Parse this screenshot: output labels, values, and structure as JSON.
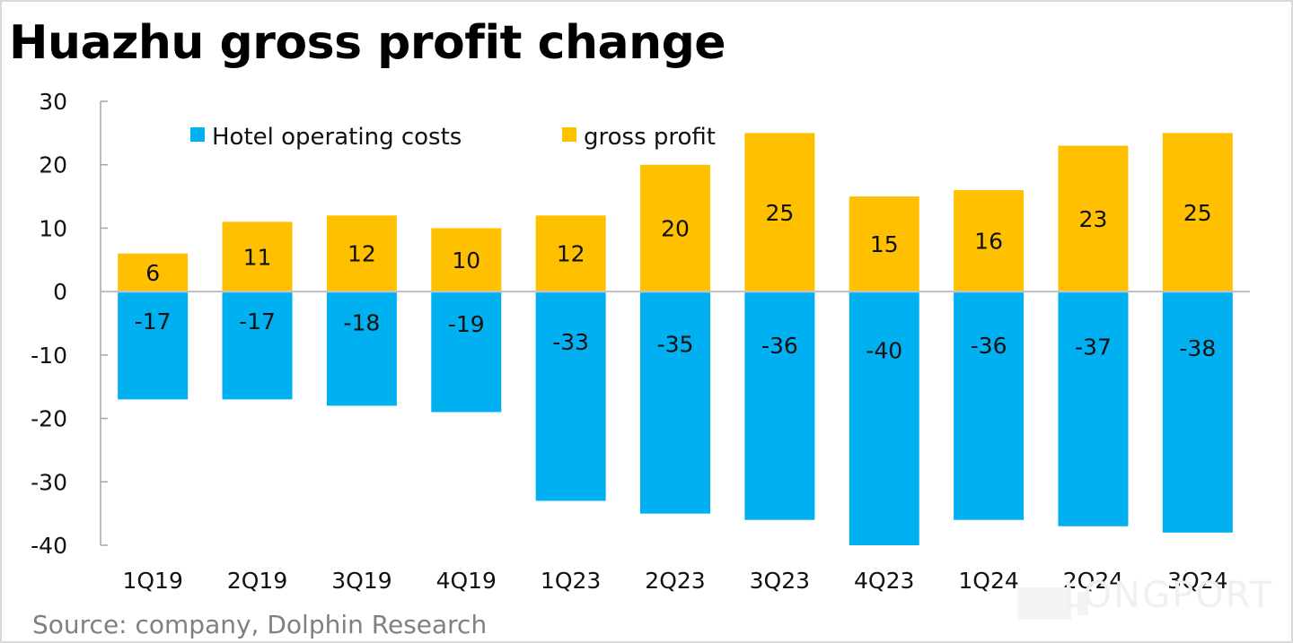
{
  "chart_data": {
    "type": "bar",
    "stacked": true,
    "title": "Huazhu gross profit change",
    "source": "Source: company, Dolphin Research",
    "categories": [
      "1Q19",
      "2Q19",
      "3Q19",
      "4Q19",
      "1Q23",
      "2Q23",
      "3Q23",
      "4Q23",
      "1Q24",
      "2Q24",
      "3Q24"
    ],
    "series": [
      {
        "name": "Hotel operating costs",
        "color": "#00b0f0",
        "values": [
          -17,
          -17,
          -18,
          -19,
          -33,
          -35,
          -36,
          -40,
          -36,
          -37,
          -38
        ]
      },
      {
        "name": "gross profit",
        "color": "#ffc000",
        "values": [
          6,
          11,
          12,
          10,
          12,
          20,
          25,
          15,
          16,
          23,
          25
        ]
      }
    ],
    "xlabel": "",
    "ylabel": "",
    "ylim": [
      -40,
      30
    ],
    "yticks": [
      30,
      20,
      10,
      0,
      -10,
      -20,
      -30,
      -40
    ],
    "grid": false,
    "legend_position": "top-left",
    "watermark": "LONGPORT"
  }
}
